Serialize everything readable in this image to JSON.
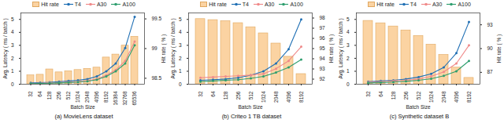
{
  "chart_data": [
    {
      "type": "bar",
      "title": "(a) MovieLens dataset",
      "x_label": "Batch Size",
      "y_label": "Avg. Latency ( ms / batch )",
      "y2_label": "Hit rate ( % )",
      "categories": [
        "32",
        "64",
        "128",
        "256",
        "512",
        "1024",
        "2048",
        "4096",
        "8192",
        "16384",
        "32768",
        "65536"
      ],
      "ylim": [
        0,
        5.5
      ],
      "yticks": [
        0,
        1,
        2,
        3,
        4,
        5
      ],
      "y2lim": [
        98.4,
        99.6
      ],
      "y2ticks": [
        98.5,
        99,
        99.5
      ],
      "grid": false,
      "legend": "top",
      "series": [
        {
          "name": "Hit rate",
          "type": "bar",
          "axis": "y2",
          "color": "#fbd3a2",
          "values": [
            98.55,
            98.56,
            98.65,
            98.6,
            98.62,
            98.64,
            98.66,
            98.68,
            98.85,
            98.9,
            99.05,
            99.2
          ]
        },
        {
          "name": "T4",
          "type": "line",
          "marker": "circle",
          "color": "#1f6fb4",
          "values": [
            0.1,
            0.12,
            0.15,
            0.2,
            0.25,
            0.3,
            0.4,
            0.6,
            1.0,
            1.6,
            2.8,
            5.2
          ]
        },
        {
          "name": "A30",
          "type": "line",
          "marker": "circle",
          "color": "#f08a8a",
          "values": [
            0.05,
            0.07,
            0.1,
            0.12,
            0.16,
            0.2,
            0.27,
            0.4,
            0.7,
            1.1,
            1.8,
            3.3
          ]
        },
        {
          "name": "A100",
          "type": "line",
          "marker": "circle",
          "color": "#2e9e6e",
          "values": [
            0.04,
            0.06,
            0.08,
            0.1,
            0.13,
            0.17,
            0.23,
            0.35,
            0.6,
            1.0,
            1.6,
            3.0
          ]
        }
      ]
    },
    {
      "type": "bar",
      "title": "(b) Criteo 1 TB dataset",
      "x_label": "Batch Size",
      "y_label": "Avg. Latency ( ms / batch )",
      "y2_label": "Hit rate ( % )",
      "categories": [
        "32",
        "64",
        "128",
        "256",
        "512",
        "1024",
        "2048",
        "4096",
        "8192"
      ],
      "ylim": [
        0,
        5.5
      ],
      "yticks": [
        0,
        1,
        2,
        3,
        4,
        5
      ],
      "y2lim": [
        91.5,
        98.5
      ],
      "y2ticks": [
        92,
        93,
        94,
        95,
        96,
        97,
        98
      ],
      "grid": false,
      "legend": "top",
      "series": [
        {
          "name": "Hit rate",
          "type": "bar",
          "axis": "y2",
          "color": "#fbd3a2",
          "values": [
            97.9,
            97.8,
            97.7,
            97.5,
            97.1,
            96.5,
            95.5,
            94.2,
            92.5
          ]
        },
        {
          "name": "T4",
          "type": "line",
          "marker": "circle",
          "color": "#1f6fb4",
          "values": [
            0.3,
            0.35,
            0.4,
            0.5,
            0.7,
            1.0,
            1.6,
            2.7,
            5.0
          ]
        },
        {
          "name": "A30",
          "type": "line",
          "marker": "circle",
          "color": "#f08a8a",
          "values": [
            0.5,
            0.55,
            0.6,
            0.65,
            0.7,
            0.8,
            1.2,
            1.8,
            2.9
          ]
        },
        {
          "name": "A100",
          "type": "line",
          "marker": "circle",
          "color": "#2e9e6e",
          "values": [
            0.2,
            0.25,
            0.3,
            0.35,
            0.45,
            0.6,
            0.9,
            1.3,
            1.9
          ]
        }
      ]
    },
    {
      "type": "bar",
      "title": "(c) Synthetic dataset B",
      "x_label": "Batch Size",
      "y_label": "Avg. Latency ( ms / batch )",
      "y2_label": "Hit rate ( % )",
      "categories": [
        "32",
        "64",
        "128",
        "256",
        "512",
        "1024",
        "2048",
        "4096",
        "8192"
      ],
      "ylim": [
        0,
        5.5
      ],
      "yticks": [
        0,
        1,
        2,
        3,
        4,
        5
      ],
      "y2lim": [
        85.5,
        94.5
      ],
      "y2ticks": [
        87,
        90,
        93
      ],
      "grid": false,
      "legend": "top",
      "series": [
        {
          "name": "Hit rate",
          "type": "bar",
          "axis": "y2",
          "color": "#fbd3a2",
          "values": [
            93.5,
            93.2,
            92.8,
            92.3,
            91.6,
            90.5,
            89.2,
            87.6,
            86.3
          ]
        },
        {
          "name": "T4",
          "type": "line",
          "marker": "circle",
          "color": "#1f6fb4",
          "values": [
            0.2,
            0.25,
            0.3,
            0.4,
            0.55,
            0.8,
            1.3,
            2.4,
            4.8
          ]
        },
        {
          "name": "A30",
          "type": "line",
          "marker": "circle",
          "color": "#f08a8a",
          "values": [
            0.15,
            0.2,
            0.25,
            0.3,
            0.4,
            0.6,
            0.95,
            1.6,
            3.0
          ]
        },
        {
          "name": "A100",
          "type": "line",
          "marker": "circle",
          "color": "#2e9e6e",
          "values": [
            0.1,
            0.13,
            0.17,
            0.22,
            0.3,
            0.42,
            0.65,
            1.0,
            1.8
          ]
        }
      ]
    }
  ]
}
